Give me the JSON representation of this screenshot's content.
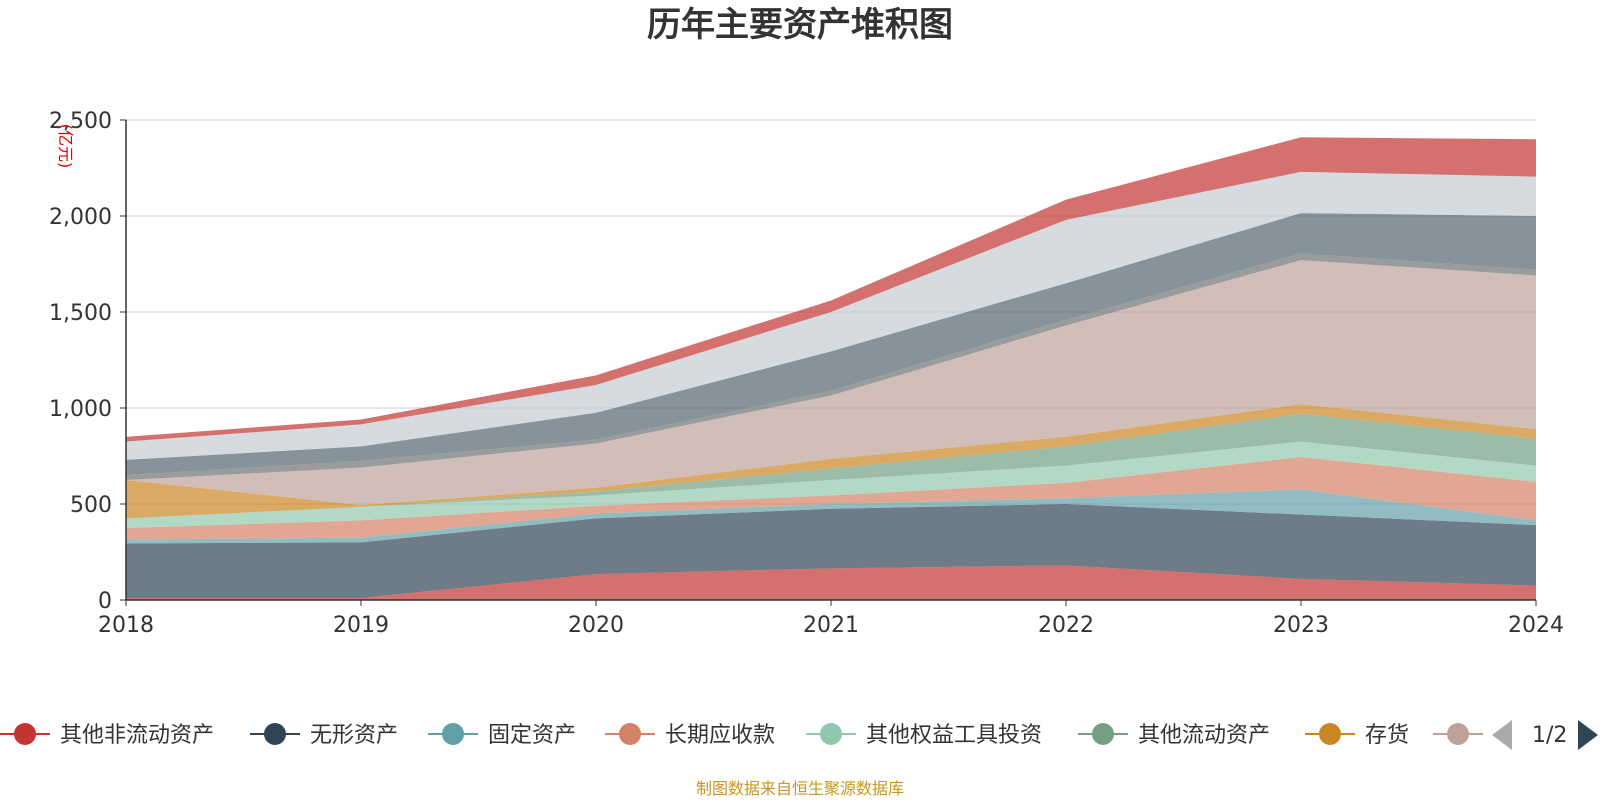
{
  "chart_data": {
    "type": "area",
    "stacked": true,
    "title": "历年主要资产堆积图",
    "unit": "(亿元)",
    "x": [
      "2018",
      "2019",
      "2020",
      "2021",
      "2022",
      "2023",
      "2024"
    ],
    "ylim": [
      0,
      2500
    ],
    "y_ticks": [
      "0",
      "500",
      "1,000",
      "1,500",
      "2,000",
      "2,500"
    ],
    "y_tick_values": [
      0,
      500,
      1000,
      1500,
      2000,
      2500
    ],
    "grid": true,
    "legend_position": "bottom",
    "series": [
      {
        "name": "其他非流动资产",
        "color": "#c23531",
        "values": [
          10,
          10,
          135,
          165,
          180,
          110,
          75
        ]
      },
      {
        "name": "无形资产",
        "color": "#2f4554",
        "values": [
          285,
          290,
          290,
          310,
          320,
          335,
          315
        ]
      },
      {
        "name": "固定资产",
        "color": "#61a0a8",
        "values": [
          20,
          25,
          25,
          25,
          30,
          130,
          25
        ]
      },
      {
        "name": "长期应收款",
        "color": "#d48265",
        "values": [
          60,
          90,
          40,
          45,
          80,
          170,
          200
        ]
      },
      {
        "name": "其他权益工具投资",
        "color": "#91c7ae",
        "values": [
          50,
          70,
          55,
          80,
          90,
          80,
          85
        ]
      },
      {
        "name": "其他流动资产",
        "color": "#749f83",
        "values": [
          0,
          0,
          20,
          60,
          100,
          145,
          140
        ]
      },
      {
        "name": "存货",
        "color": "#ca8622",
        "values": [
          200,
          10,
          20,
          50,
          50,
          50,
          50
        ]
      },
      {
        "name": "",
        "color": "#bda29a",
        "values": [
          0,
          195,
          230,
          330,
          580,
          750,
          800
        ]
      },
      {
        "name": "",
        "color": "#6e7074",
        "values": [
          25,
          35,
          20,
          25,
          30,
          35,
          30
        ]
      },
      {
        "name": "",
        "color": "#546570",
        "values": [
          80,
          75,
          140,
          205,
          190,
          210,
          280
        ]
      },
      {
        "name": "",
        "color": "#c4ccd3",
        "values": [
          95,
          115,
          145,
          205,
          330,
          215,
          205
        ]
      },
      {
        "name": "",
        "color": "#c23531",
        "values": [
          25,
          25,
          50,
          60,
          105,
          180,
          195
        ]
      }
    ]
  },
  "legend": {
    "page_label": "1/2"
  },
  "footer": {
    "source": "制图数据来自恒生聚源数据库"
  }
}
